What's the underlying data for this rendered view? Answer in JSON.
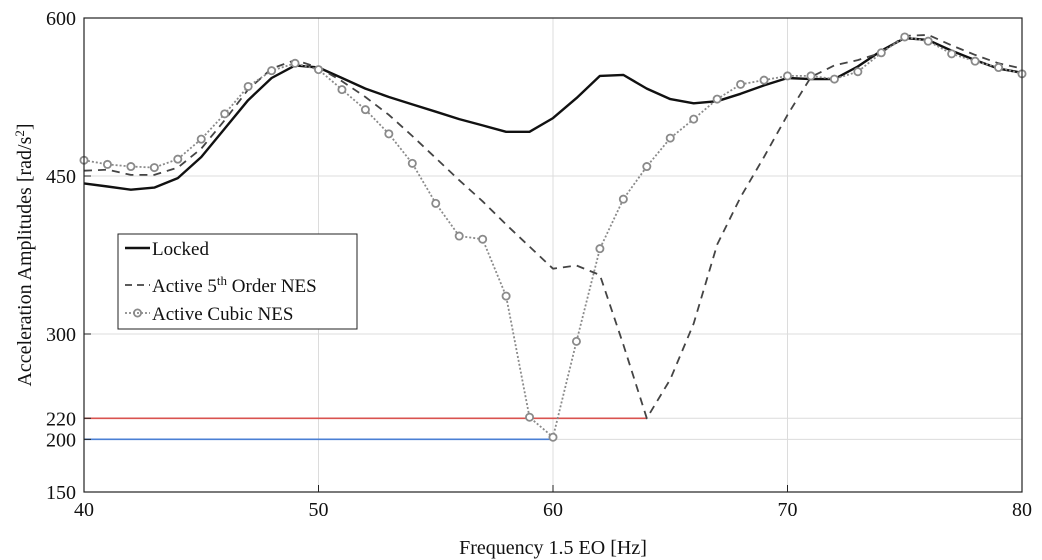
{
  "chart_data": {
    "type": "line",
    "xlabel": "Frequency 1.5 EO [Hz]",
    "ylabel": {
      "text": "Acceleration Amplitudes [rad/s",
      "sup": "2",
      "suffix": "]"
    },
    "xlim": [
      40,
      80
    ],
    "ylim": [
      150,
      600
    ],
    "xticks": [
      "40",
      "50",
      "60",
      "70",
      "80"
    ],
    "yticks": [
      "150",
      "200",
      "220",
      "300",
      "450",
      "600"
    ],
    "grid": true,
    "legend_position": "middle-left",
    "series": [
      {
        "name": "Locked",
        "style": "solid",
        "color": "#111111",
        "x": [
          40,
          41,
          42,
          43,
          44,
          45,
          46,
          47,
          48,
          49,
          50,
          51,
          52,
          53,
          54,
          55,
          56,
          57,
          58,
          59,
          60,
          61,
          62,
          63,
          64,
          65,
          66,
          67,
          68,
          69,
          70,
          71,
          72,
          73,
          74,
          75,
          76,
          77,
          78,
          79,
          80
        ],
        "y": [
          443,
          440,
          437,
          439,
          448,
          468,
          495,
          522,
          543,
          555,
          553,
          543,
          533,
          525,
          518,
          511,
          504,
          498,
          492,
          492,
          505,
          524,
          545,
          546,
          533,
          523,
          519,
          521,
          528,
          536,
          543,
          542,
          542,
          554,
          569,
          581,
          579,
          569,
          560,
          552,
          548
        ]
      },
      {
        "name_parts": [
          "Active 5",
          "th",
          " Order NES"
        ],
        "style": "dashed",
        "color": "#444444",
        "x": [
          40,
          41,
          42,
          43,
          44,
          45,
          46,
          47,
          48,
          49,
          50,
          51,
          52,
          53,
          54,
          55,
          56,
          57,
          58,
          59,
          60,
          61,
          62,
          63,
          64,
          65,
          66,
          67,
          68,
          69,
          70,
          71,
          72,
          73,
          74,
          75,
          76,
          77,
          78,
          79,
          80
        ],
        "y": [
          455,
          456,
          451,
          451,
          458,
          476,
          503,
          532,
          552,
          560,
          553,
          540,
          525,
          508,
          488,
          467,
          446,
          426,
          404,
          383,
          362,
          365,
          356,
          290,
          220,
          257,
          310,
          385,
          430,
          468,
          508,
          544,
          555,
          560,
          567,
          583,
          584,
          574,
          565,
          557,
          552
        ]
      },
      {
        "name": "Active Cubic NES",
        "style": "dotted-circle",
        "color": "#8a8a8a",
        "x": [
          40,
          41,
          42,
          43,
          44,
          45,
          46,
          47,
          48,
          49,
          50,
          51,
          52,
          53,
          54,
          55,
          56,
          57,
          58,
          59,
          60,
          61,
          62,
          63,
          64,
          65,
          66,
          67,
          68,
          69,
          70,
          71,
          72,
          73,
          74,
          75,
          76,
          77,
          78,
          79,
          80
        ],
        "y": [
          465,
          461,
          459,
          458,
          466,
          485,
          509,
          535,
          550,
          557,
          551,
          532,
          513,
          490,
          462,
          424,
          393,
          390,
          336,
          221,
          202,
          293,
          381,
          428,
          459,
          486,
          504,
          523,
          537,
          541,
          545,
          545,
          542,
          549,
          567,
          582,
          578,
          566,
          559,
          553,
          547
        ]
      }
    ],
    "reference_lines": [
      {
        "y": 220,
        "x_end": 64,
        "color": "#d9534f"
      },
      {
        "y": 200,
        "x_end": 60,
        "color": "#4a7fd4"
      }
    ]
  }
}
